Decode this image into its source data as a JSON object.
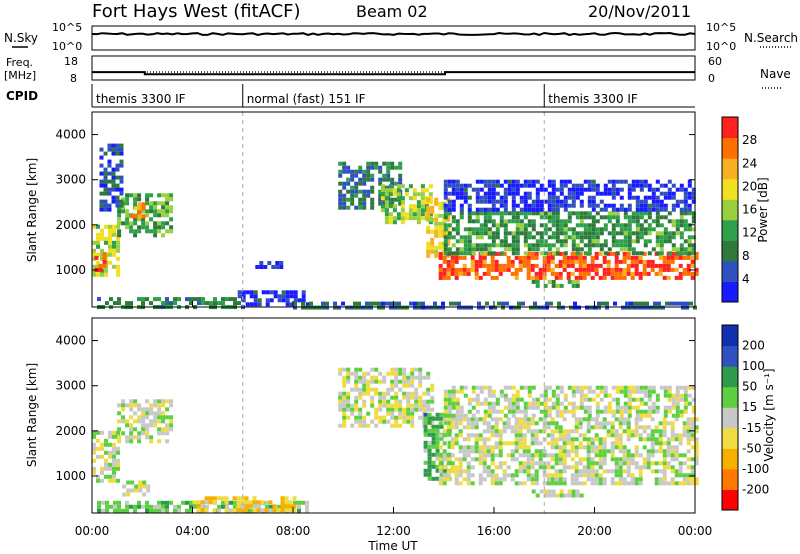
{
  "header": {
    "station": "Fort Hays West (fitACF)",
    "beam": "Beam 02",
    "date": "20/Nov/2011"
  },
  "top_panels": {
    "nsky_label": "N.Sky",
    "nsky_ticks": [
      "10^5",
      "10^0"
    ],
    "nsearch_label": "N.Search",
    "nsearch_ticks": [
      "10^5",
      "10^0"
    ],
    "freq_label": "Freq.",
    "freq_unit": "[MHz]",
    "freq_ticks": [
      "18",
      "8"
    ],
    "nave_label": "Nave",
    "nave_ticks": [
      "60",
      "0"
    ],
    "cpid_label": "CPID",
    "cpid_segments": [
      {
        "start_h": 0,
        "label": "themis 3300 IF"
      },
      {
        "start_h": 6,
        "label": "normal (fast) 151 IF"
      },
      {
        "start_h": 18,
        "label": "themis 3300 IF"
      }
    ],
    "freq_steps": [
      {
        "h0": 0,
        "h1": 2.1,
        "mhz": 11.3
      },
      {
        "h0": 2.1,
        "h1": 14.05,
        "mhz": 10.4
      },
      {
        "h0": 14.05,
        "h1": 24,
        "mhz": 11.3
      }
    ]
  },
  "x_axis": {
    "label": "Time UT",
    "ticks": [
      "00:00",
      "04:00",
      "08:00",
      "12:00",
      "16:00",
      "20:00",
      "00:00"
    ],
    "range_h": [
      0,
      24
    ]
  },
  "colors": {
    "power": [
      "#1a1aff",
      "#3050c0",
      "#2e7a3c",
      "#2ea04a",
      "#9ad040",
      "#f0e020",
      "#f8b020",
      "#ff7000",
      "#ff2020"
    ],
    "velocity": [
      "#ff0000",
      "#ff7800",
      "#f5b000",
      "#f0dc40",
      "#c8c8c8",
      "#5cd040",
      "#2e9a4a",
      "#3050c0",
      "#1030b0"
    ]
  },
  "chart_data": [
    {
      "type": "heatmap",
      "name": "power",
      "ylabel": "Slant Range [km]",
      "yticks": [
        1000,
        2000,
        3000,
        4000
      ],
      "ylim": [
        180,
        4500
      ],
      "xlim": [
        0,
        24
      ],
      "colorbar_label": "Power [dB]",
      "colorbar_ticks": [
        4,
        8,
        12,
        16,
        20,
        24,
        28
      ],
      "colorbar_range": [
        0,
        32
      ],
      "regions": [
        {
          "h0": 0.0,
          "h1": 1.0,
          "r0": 900,
          "r1": 2000,
          "level": 0.55
        },
        {
          "h0": 0.1,
          "h1": 0.5,
          "r0": 1000,
          "r1": 1400,
          "level": 0.9
        },
        {
          "h0": 1.0,
          "h1": 3.2,
          "r0": 1800,
          "r1": 2700,
          "level": 0.4
        },
        {
          "h0": 1.5,
          "h1": 2.0,
          "r0": 2200,
          "r1": 2500,
          "level": 0.75
        },
        {
          "h0": 0.3,
          "h1": 1.1,
          "r0": 2300,
          "r1": 3800,
          "level": 0.15
        },
        {
          "h0": 0.2,
          "h1": 6.0,
          "r0": 200,
          "r1": 400,
          "level": 0.3
        },
        {
          "h0": 5.8,
          "h1": 8.6,
          "r0": 250,
          "r1": 550,
          "level": 0.12
        },
        {
          "h0": 6.5,
          "h1": 7.5,
          "r0": 1100,
          "r1": 1200,
          "level": 0.1
        },
        {
          "h0": 9.8,
          "h1": 12.2,
          "r0": 2400,
          "r1": 3400,
          "level": 0.25
        },
        {
          "h0": 11.5,
          "h1": 13.5,
          "r0": 2100,
          "r1": 2900,
          "level": 0.5
        },
        {
          "h0": 13.3,
          "h1": 14.1,
          "r0": 1300,
          "r1": 2600,
          "level": 0.65
        },
        {
          "h0": 13.8,
          "h1": 24.0,
          "r0": 800,
          "r1": 1400,
          "level": 0.88
        },
        {
          "h0": 14.0,
          "h1": 24.0,
          "r0": 1400,
          "r1": 2300,
          "level": 0.35
        },
        {
          "h0": 14.0,
          "h1": 24.0,
          "r0": 2300,
          "r1": 3000,
          "level": 0.1
        },
        {
          "h0": 8.0,
          "h1": 24.0,
          "r0": 200,
          "r1": 300,
          "level": 0.2
        },
        {
          "h0": 17.5,
          "h1": 19.5,
          "r0": 650,
          "r1": 780,
          "level": 0.4
        }
      ]
    },
    {
      "type": "heatmap",
      "name": "velocity",
      "ylabel": "Slant Range [km]",
      "yticks": [
        1000,
        2000,
        3000,
        4000
      ],
      "ylim": [
        180,
        4500
      ],
      "xlim": [
        0,
        24
      ],
      "colorbar_label": "Velocity [m s⁻¹]",
      "colorbar_ticks": [
        "200",
        "100",
        "50",
        "15",
        "-15",
        "-50",
        "-100",
        "-200"
      ],
      "colorbar_range": [
        -250,
        250
      ],
      "regions": [
        {
          "h0": 0.0,
          "h1": 1.0,
          "r0": 900,
          "r1": 2000,
          "level": 0.5
        },
        {
          "h0": 1.0,
          "h1": 3.2,
          "r0": 1800,
          "r1": 2700,
          "level": 0.5
        },
        {
          "h0": 1.2,
          "h1": 2.2,
          "r0": 600,
          "r1": 900,
          "level": 0.5
        },
        {
          "h0": 0.2,
          "h1": 8.5,
          "r0": 200,
          "r1": 450,
          "level": 0.6
        },
        {
          "h0": 4.0,
          "h1": 8.0,
          "r0": 250,
          "r1": 550,
          "level": 0.35
        },
        {
          "h0": 9.8,
          "h1": 13.5,
          "r0": 2100,
          "r1": 3400,
          "level": 0.5
        },
        {
          "h0": 13.2,
          "h1": 14.2,
          "r0": 900,
          "r1": 2400,
          "level": 0.66
        },
        {
          "h0": 13.8,
          "h1": 24.0,
          "r0": 800,
          "r1": 2300,
          "level": 0.5
        },
        {
          "h0": 14.0,
          "h1": 24.0,
          "r0": 2300,
          "r1": 3000,
          "level": 0.5
        },
        {
          "h0": 17.5,
          "h1": 19.5,
          "r0": 550,
          "r1": 700,
          "level": 0.5
        }
      ]
    }
  ]
}
